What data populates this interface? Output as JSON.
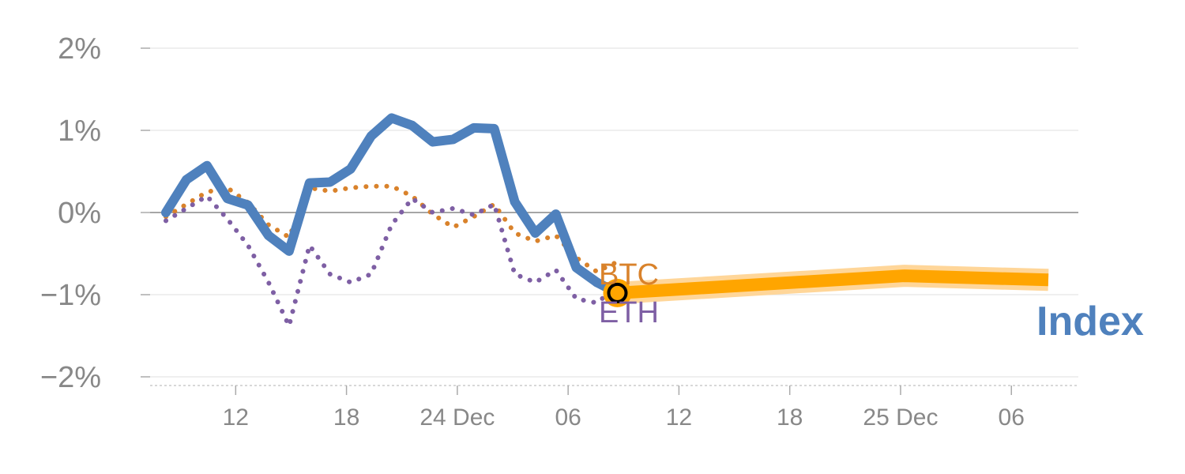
{
  "chart_data": {
    "type": "line",
    "ylim": [
      -2.05,
      2.05
    ],
    "y_ticks": [
      {
        "value": 2,
        "label": "2%"
      },
      {
        "value": 1,
        "label": "1%"
      },
      {
        "value": 0,
        "label": "0%"
      },
      {
        "value": -1,
        "label": "−1%"
      },
      {
        "value": -2,
        "label": "−2%"
      }
    ],
    "x_ticks": [
      {
        "x": 3.4,
        "label": "12"
      },
      {
        "x": 8.8,
        "label": "18"
      },
      {
        "x": 14.2,
        "label": "24 Dec"
      },
      {
        "x": 19.6,
        "label": "06"
      },
      {
        "x": 25.0,
        "label": "12"
      },
      {
        "x": 30.4,
        "label": "18"
      },
      {
        "x": 35.8,
        "label": "25 Dec"
      },
      {
        "x": 41.2,
        "label": "06"
      }
    ],
    "xlim": [
      -1.2,
      44.6
    ],
    "grid": true,
    "colors": {
      "index": "#4f81bd",
      "btc": "#d9822b",
      "eth": "#7e5fa4",
      "forecast": "#ffa500",
      "forecast_band": "#ffd699",
      "zero_line": "#888888",
      "grid": "#e5e5e5"
    },
    "series": [
      {
        "name": "Index",
        "style": "solid",
        "x": [
          0,
          1,
          2,
          3,
          4,
          5,
          6,
          7,
          8,
          9,
          10,
          11,
          12,
          13,
          14,
          15,
          16,
          17,
          18,
          19,
          20,
          21
        ],
        "values": [
          0.0,
          0.4,
          0.57,
          0.17,
          0.09,
          -0.28,
          -0.47,
          0.36,
          0.37,
          0.53,
          0.93,
          1.15,
          1.06,
          0.86,
          0.89,
          1.03,
          1.02,
          0.13,
          -0.25,
          -0.02,
          -0.67,
          -0.85
        ]
      },
      {
        "name": "BTC",
        "style": "dotted",
        "x": [
          0,
          1,
          2,
          3,
          4,
          5,
          6,
          7,
          8,
          9,
          10,
          11,
          12,
          13,
          14,
          15,
          16,
          17,
          18,
          19,
          20,
          21,
          22
        ],
        "values": [
          -0.05,
          0.1,
          0.25,
          0.3,
          0.12,
          -0.15,
          -0.3,
          0.3,
          0.26,
          0.3,
          0.32,
          0.32,
          0.2,
          -0.02,
          -0.18,
          -0.05,
          0.1,
          -0.25,
          -0.35,
          -0.28,
          -0.55,
          -0.72,
          -0.6
        ]
      },
      {
        "name": "ETH",
        "style": "dotted",
        "x": [
          0,
          1,
          2,
          3,
          4,
          5,
          6,
          7,
          8,
          9,
          10,
          11,
          12,
          13,
          14,
          15,
          16,
          17,
          18,
          19,
          20,
          21,
          22
        ],
        "values": [
          -0.1,
          0.05,
          0.2,
          -0.08,
          -0.4,
          -0.85,
          -1.38,
          -0.4,
          -0.75,
          -0.85,
          -0.75,
          -0.15,
          0.17,
          0.0,
          0.05,
          -0.03,
          0.1,
          -0.75,
          -0.85,
          -0.7,
          -1.05,
          -1.1,
          -0.9
        ]
      }
    ],
    "index_tail": {
      "x": [
        21,
        22.0
      ],
      "values": [
        -0.85,
        -0.98
      ]
    },
    "forecast": {
      "x": [
        22.0,
        36.0,
        43.0
      ],
      "values": [
        -0.98,
        -0.77,
        -0.82
      ]
    },
    "marker": {
      "x": 22.0,
      "value": -0.98
    },
    "btc_label": "BTC",
    "eth_label": "ETH",
    "index_label": "Index"
  }
}
